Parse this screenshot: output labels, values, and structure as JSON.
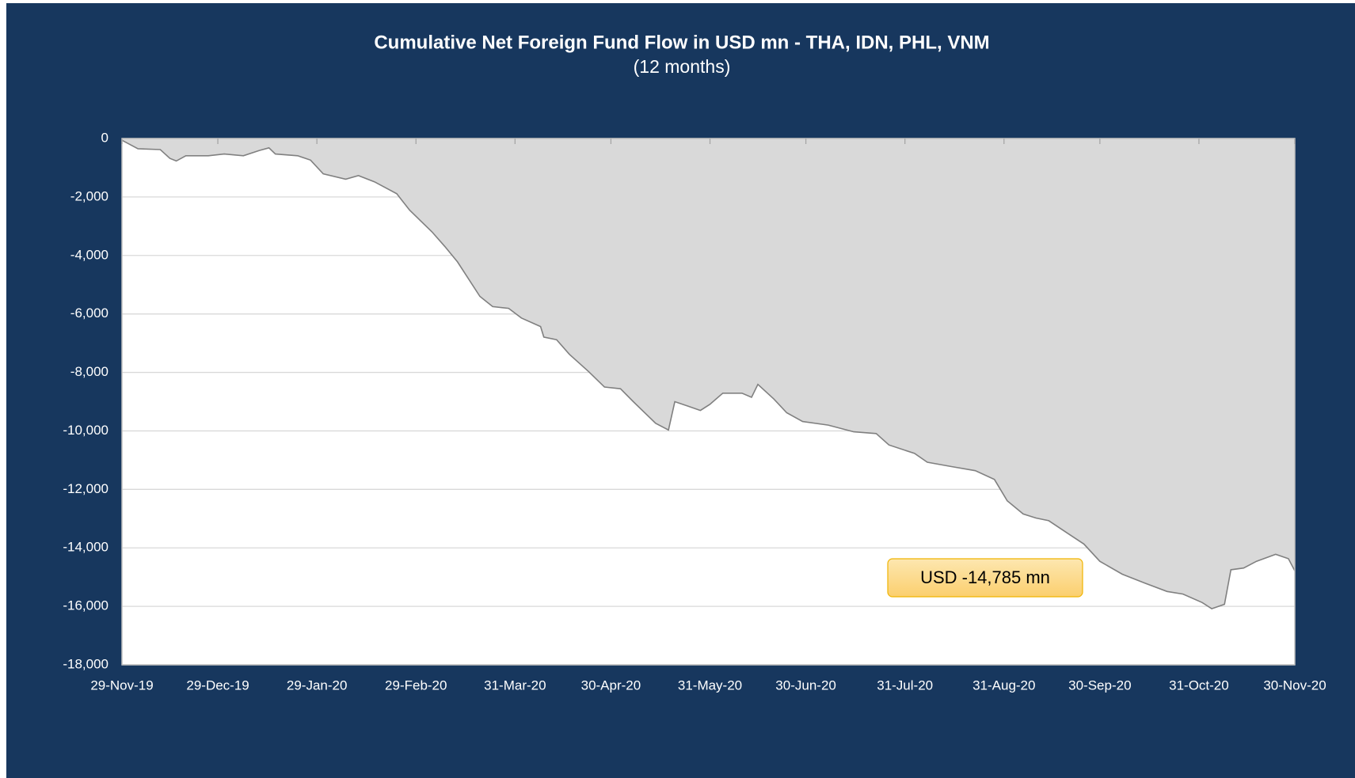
{
  "chart_data": {
    "type": "area",
    "title": "Cumulative Net Foreign Fund Flow in USD mn -  THA, IDN, PHL, VNM",
    "subtitle": "(12 months)",
    "annotation": "USD -14,785 mn",
    "color": "#d9d9d9",
    "line_color": "#808080",
    "grid": true,
    "x": [
      "2019-11-29",
      "2019-12-04",
      "2019-12-11",
      "2019-12-14",
      "2019-12-16",
      "2019-12-19",
      "2019-12-26",
      "2019-12-31",
      "2020-01-06",
      "2020-01-11",
      "2020-01-14",
      "2020-01-16",
      "2020-01-23",
      "2020-01-27",
      "2020-01-31",
      "2020-02-07",
      "2020-02-11",
      "2020-02-16",
      "2020-02-23",
      "2020-02-27",
      "2020-03-05",
      "2020-03-09",
      "2020-03-13",
      "2020-03-20",
      "2020-03-24",
      "2020-03-29",
      "2020-04-02",
      "2020-04-08",
      "2020-04-09",
      "2020-04-13",
      "2020-04-17",
      "2020-04-23",
      "2020-04-28",
      "2020-05-03",
      "2020-05-07",
      "2020-05-14",
      "2020-05-18",
      "2020-05-20",
      "2020-05-24",
      "2020-05-28",
      "2020-05-31",
      "2020-06-04",
      "2020-06-10",
      "2020-06-13",
      "2020-06-15",
      "2020-06-20",
      "2020-06-24",
      "2020-06-29",
      "2020-07-07",
      "2020-07-15",
      "2020-07-22",
      "2020-07-26",
      "2020-08-03",
      "2020-08-07",
      "2020-08-14",
      "2020-08-22",
      "2020-08-28",
      "2020-09-01",
      "2020-09-06",
      "2020-09-10",
      "2020-09-14",
      "2020-09-20",
      "2020-09-25",
      "2020-09-30",
      "2020-10-07",
      "2020-10-14",
      "2020-10-21",
      "2020-10-26",
      "2020-11-01",
      "2020-11-04",
      "2020-11-08",
      "2020-11-10",
      "2020-11-14",
      "2020-11-18",
      "2020-11-24",
      "2020-11-28",
      "2020-11-30"
    ],
    "values": [
      -60,
      -350,
      -380,
      -680,
      -770,
      -590,
      -590,
      -530,
      -590,
      -410,
      -320,
      -530,
      -590,
      -740,
      -1210,
      -1390,
      -1270,
      -1480,
      -1890,
      -2450,
      -3190,
      -3690,
      -4220,
      -5400,
      -5750,
      -5810,
      -6140,
      -6430,
      -6790,
      -6880,
      -7380,
      -7970,
      -8500,
      -8560,
      -9000,
      -9740,
      -9970,
      -9000,
      -9150,
      -9300,
      -9090,
      -8710,
      -8710,
      -8850,
      -8410,
      -8910,
      -9380,
      -9680,
      -9800,
      -10030,
      -10090,
      -10480,
      -10770,
      -11070,
      -11210,
      -11360,
      -11660,
      -12390,
      -12840,
      -12980,
      -13070,
      -13510,
      -13870,
      -14460,
      -14900,
      -15200,
      -15490,
      -15580,
      -15870,
      -16080,
      -15930,
      -14750,
      -14690,
      -14460,
      -14220,
      -14370,
      -14785
    ],
    "xlim": [
      "2019-11-29",
      "2020-11-30"
    ],
    "xticks": [
      {
        "value": "2019-11-29",
        "label": "29-Nov-19"
      },
      {
        "value": "2019-12-29",
        "label": "29-Dec-19"
      },
      {
        "value": "2020-01-29",
        "label": "29-Jan-20"
      },
      {
        "value": "2020-02-29",
        "label": "29-Feb-20"
      },
      {
        "value": "2020-03-31",
        "label": "31-Mar-20"
      },
      {
        "value": "2020-04-30",
        "label": "30-Apr-20"
      },
      {
        "value": "2020-05-31",
        "label": "31-May-20"
      },
      {
        "value": "2020-06-30",
        "label": "30-Jun-20"
      },
      {
        "value": "2020-07-31",
        "label": "31-Jul-20"
      },
      {
        "value": "2020-08-31",
        "label": "31-Aug-20"
      },
      {
        "value": "2020-09-30",
        "label": "30-Sep-20"
      },
      {
        "value": "2020-10-31",
        "label": "31-Oct-20"
      },
      {
        "value": "2020-11-30",
        "label": "30-Nov-20"
      }
    ],
    "ylim": [
      -18000,
      0
    ],
    "yticks": [
      0,
      {
        "value": -2000,
        "label": "-2,000"
      },
      {
        "value": -4000,
        "label": "-4,000"
      },
      {
        "value": -6000,
        "label": "-6,000"
      },
      {
        "value": -8000,
        "label": "-8,000"
      },
      {
        "value": -10000,
        "label": "-10,000"
      },
      {
        "value": -12000,
        "label": "-12,000"
      },
      {
        "value": -14000,
        "label": "-14,000"
      },
      {
        "value": -16000,
        "label": "-16,000"
      },
      {
        "value": -18000,
        "label": "-18,000"
      }
    ]
  }
}
